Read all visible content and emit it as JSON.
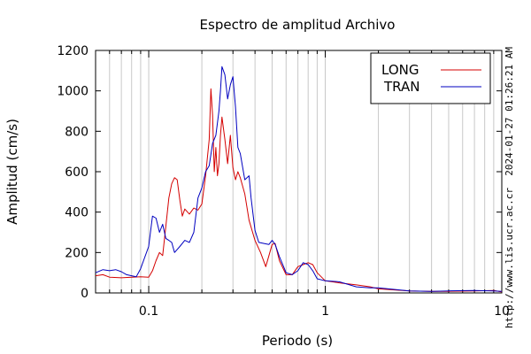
{
  "chart_data": {
    "type": "line",
    "title": "Espectro de amplitud Archivo",
    "xlabel": "Periodo (s)",
    "ylabel": "Amplitud (cm/s)",
    "x_scale": "log",
    "xlim": [
      0.05,
      10
    ],
    "ylim": [
      0,
      1200
    ],
    "x_ticks": [
      0.1,
      1,
      10
    ],
    "x_tick_labels": [
      "0.1",
      "1",
      "10"
    ],
    "y_ticks": [
      0,
      200,
      400,
      600,
      800,
      1000,
      1200
    ],
    "y_tick_labels": [
      "0",
      "200",
      "400",
      "600",
      "800",
      "1000",
      "1200"
    ],
    "grid": "vertical",
    "legend_position": "top-right",
    "side_text_1": "2024-01-27 01:26:21 AM",
    "side_text_2": "http://www.lis.ucr.ac.cr",
    "series": [
      {
        "name": "LONG",
        "color": "#d40000",
        "points": [
          [
            0.05,
            85
          ],
          [
            0.055,
            90
          ],
          [
            0.06,
            78
          ],
          [
            0.07,
            75
          ],
          [
            0.08,
            78
          ],
          [
            0.09,
            80
          ],
          [
            0.1,
            78
          ],
          [
            0.105,
            110
          ],
          [
            0.11,
            160
          ],
          [
            0.115,
            200
          ],
          [
            0.12,
            185
          ],
          [
            0.125,
            330
          ],
          [
            0.13,
            470
          ],
          [
            0.135,
            540
          ],
          [
            0.14,
            570
          ],
          [
            0.145,
            560
          ],
          [
            0.15,
            460
          ],
          [
            0.155,
            380
          ],
          [
            0.16,
            415
          ],
          [
            0.17,
            390
          ],
          [
            0.18,
            420
          ],
          [
            0.19,
            410
          ],
          [
            0.2,
            440
          ],
          [
            0.21,
            580
          ],
          [
            0.22,
            760
          ],
          [
            0.225,
            1010
          ],
          [
            0.23,
            880
          ],
          [
            0.235,
            600
          ],
          [
            0.24,
            720
          ],
          [
            0.245,
            580
          ],
          [
            0.25,
            640
          ],
          [
            0.255,
            780
          ],
          [
            0.26,
            870
          ],
          [
            0.27,
            760
          ],
          [
            0.28,
            640
          ],
          [
            0.29,
            780
          ],
          [
            0.3,
            620
          ],
          [
            0.31,
            560
          ],
          [
            0.32,
            600
          ],
          [
            0.33,
            570
          ],
          [
            0.35,
            490
          ],
          [
            0.37,
            360
          ],
          [
            0.4,
            260
          ],
          [
            0.43,
            200
          ],
          [
            0.46,
            130
          ],
          [
            0.5,
            240
          ],
          [
            0.52,
            245
          ],
          [
            0.55,
            160
          ],
          [
            0.6,
            90
          ],
          [
            0.65,
            90
          ],
          [
            0.7,
            130
          ],
          [
            0.75,
            140
          ],
          [
            0.8,
            150
          ],
          [
            0.85,
            140
          ],
          [
            0.9,
            100
          ],
          [
            1.0,
            60
          ],
          [
            1.2,
            50
          ],
          [
            1.5,
            40
          ],
          [
            1.8,
            30
          ],
          [
            2.0,
            20
          ],
          [
            3.0,
            10
          ],
          [
            4.0,
            8
          ],
          [
            5.0,
            8
          ],
          [
            7.0,
            10
          ],
          [
            9.0,
            12
          ],
          [
            10.0,
            5
          ]
        ]
      },
      {
        "name": "TRAN",
        "color": "#0000c0",
        "points": [
          [
            0.05,
            100
          ],
          [
            0.055,
            115
          ],
          [
            0.06,
            110
          ],
          [
            0.065,
            115
          ],
          [
            0.07,
            105
          ],
          [
            0.075,
            90
          ],
          [
            0.08,
            85
          ],
          [
            0.085,
            80
          ],
          [
            0.09,
            120
          ],
          [
            0.1,
            230
          ],
          [
            0.105,
            380
          ],
          [
            0.11,
            370
          ],
          [
            0.115,
            300
          ],
          [
            0.12,
            340
          ],
          [
            0.125,
            270
          ],
          [
            0.13,
            260
          ],
          [
            0.135,
            250
          ],
          [
            0.14,
            200
          ],
          [
            0.15,
            230
          ],
          [
            0.16,
            260
          ],
          [
            0.17,
            250
          ],
          [
            0.18,
            300
          ],
          [
            0.19,
            470
          ],
          [
            0.2,
            520
          ],
          [
            0.21,
            600
          ],
          [
            0.22,
            630
          ],
          [
            0.23,
            740
          ],
          [
            0.24,
            780
          ],
          [
            0.25,
            900
          ],
          [
            0.255,
            1000
          ],
          [
            0.26,
            1120
          ],
          [
            0.27,
            1080
          ],
          [
            0.28,
            960
          ],
          [
            0.29,
            1030
          ],
          [
            0.3,
            1070
          ],
          [
            0.31,
            920
          ],
          [
            0.32,
            720
          ],
          [
            0.33,
            690
          ],
          [
            0.35,
            560
          ],
          [
            0.37,
            580
          ],
          [
            0.38,
            470
          ],
          [
            0.4,
            310
          ],
          [
            0.42,
            250
          ],
          [
            0.45,
            245
          ],
          [
            0.48,
            240
          ],
          [
            0.5,
            260
          ],
          [
            0.52,
            240
          ],
          [
            0.55,
            180
          ],
          [
            0.6,
            100
          ],
          [
            0.65,
            90
          ],
          [
            0.7,
            110
          ],
          [
            0.75,
            150
          ],
          [
            0.8,
            140
          ],
          [
            0.85,
            110
          ],
          [
            0.9,
            70
          ],
          [
            1.0,
            60
          ],
          [
            1.2,
            55
          ],
          [
            1.5,
            30
          ],
          [
            1.8,
            25
          ],
          [
            2.0,
            25
          ],
          [
            3.0,
            10
          ],
          [
            4.0,
            8
          ],
          [
            5.0,
            10
          ],
          [
            7.0,
            12
          ],
          [
            9.0,
            10
          ],
          [
            10.0,
            8
          ]
        ]
      }
    ]
  }
}
